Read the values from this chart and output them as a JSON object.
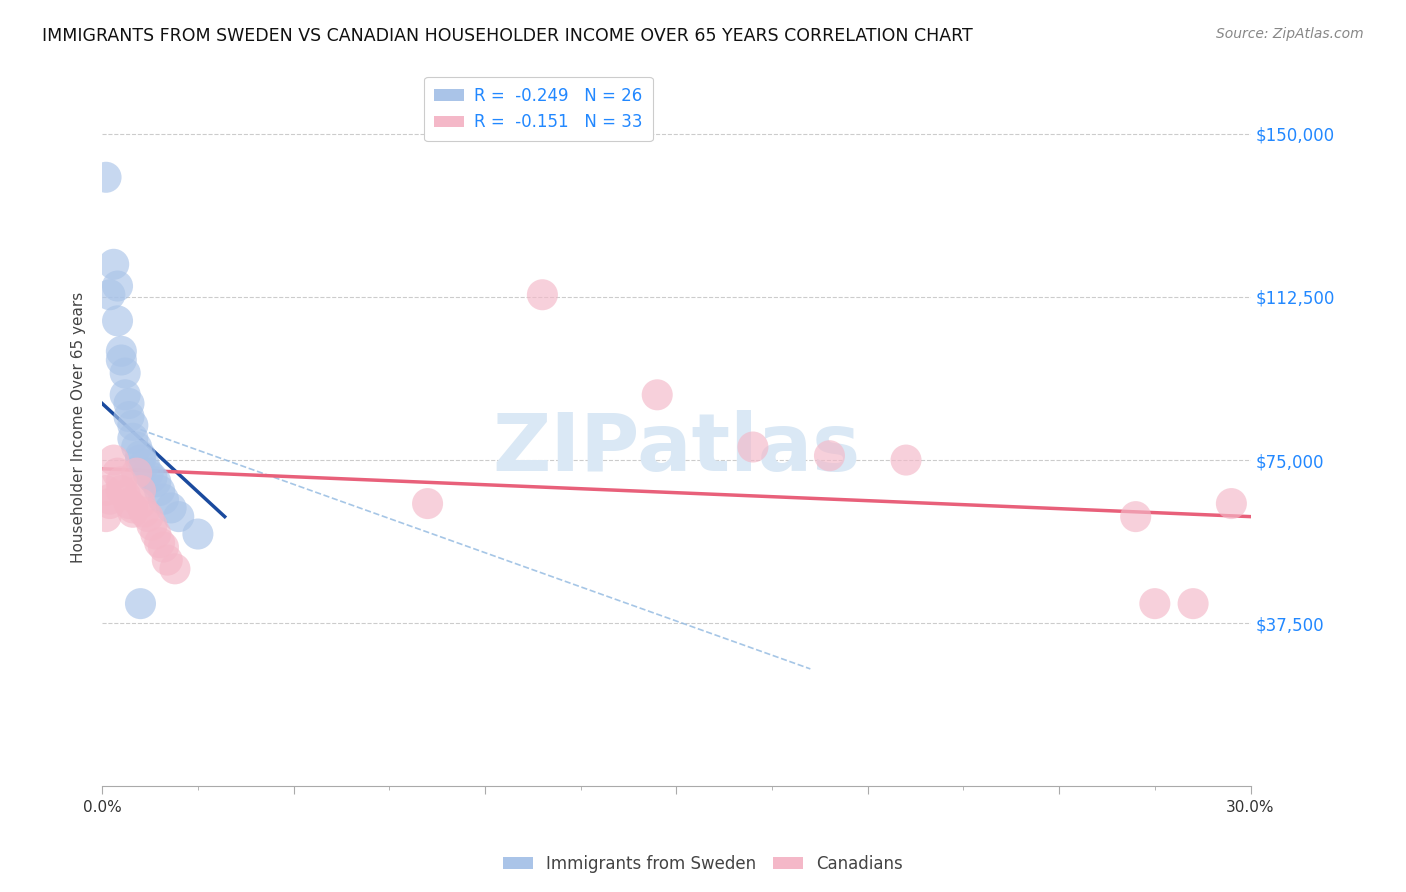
{
  "title": "IMMIGRANTS FROM SWEDEN VS CANADIAN HOUSEHOLDER INCOME OVER 65 YEARS CORRELATION CHART",
  "source": "Source: ZipAtlas.com",
  "ylabel": "Householder Income Over 65 years",
  "ytick_values": [
    37500,
    75000,
    112500,
    150000
  ],
  "xmin": 0.0,
  "xmax": 0.3,
  "ymin": 0,
  "ymax": 165000,
  "legend_top": [
    {
      "label": "R =  -0.249   N = 26",
      "color": "#aac4e8"
    },
    {
      "label": "R =  -0.151   N = 33",
      "color": "#f4b8c8"
    }
  ],
  "legend_bottom": [
    "Immigrants from Sweden",
    "Canadians"
  ],
  "watermark": "ZIPatlas",
  "sweden_color": "#aac4e8",
  "canada_color": "#f4b8c8",
  "sweden_line_color": "#1a4a9e",
  "canada_line_color": "#e8607a",
  "dashed_line_color": "#90b8e0",
  "sweden_points": [
    [
      0.001,
      140000
    ],
    [
      0.003,
      120000
    ],
    [
      0.004,
      115000
    ],
    [
      0.002,
      113000
    ],
    [
      0.004,
      107000
    ],
    [
      0.005,
      100000
    ],
    [
      0.005,
      98000
    ],
    [
      0.006,
      95000
    ],
    [
      0.006,
      90000
    ],
    [
      0.007,
      88000
    ],
    [
      0.007,
      85000
    ],
    [
      0.008,
      83000
    ],
    [
      0.008,
      80000
    ],
    [
      0.009,
      78000
    ],
    [
      0.01,
      76000
    ],
    [
      0.01,
      75000
    ],
    [
      0.011,
      74000
    ],
    [
      0.012,
      72000
    ],
    [
      0.013,
      71000
    ],
    [
      0.014,
      70000
    ],
    [
      0.015,
      68000
    ],
    [
      0.016,
      66000
    ],
    [
      0.018,
      64000
    ],
    [
      0.02,
      62000
    ],
    [
      0.025,
      58000
    ],
    [
      0.01,
      42000
    ]
  ],
  "canada_points": [
    [
      0.001,
      68000
    ],
    [
      0.002,
      66000
    ],
    [
      0.002,
      65000
    ],
    [
      0.003,
      75000
    ],
    [
      0.004,
      72000
    ],
    [
      0.005,
      70000
    ],
    [
      0.005,
      68000
    ],
    [
      0.006,
      67000
    ],
    [
      0.007,
      65000
    ],
    [
      0.008,
      64000
    ],
    [
      0.008,
      63000
    ],
    [
      0.009,
      72000
    ],
    [
      0.01,
      68000
    ],
    [
      0.01,
      65000
    ],
    [
      0.011,
      63000
    ],
    [
      0.012,
      62000
    ],
    [
      0.013,
      60000
    ],
    [
      0.014,
      58000
    ],
    [
      0.015,
      56000
    ],
    [
      0.016,
      55000
    ],
    [
      0.017,
      52000
    ],
    [
      0.019,
      50000
    ],
    [
      0.001,
      62000
    ],
    [
      0.115,
      113000
    ],
    [
      0.145,
      90000
    ],
    [
      0.17,
      78000
    ],
    [
      0.19,
      76000
    ],
    [
      0.21,
      75000
    ],
    [
      0.085,
      65000
    ],
    [
      0.27,
      62000
    ],
    [
      0.275,
      42000
    ],
    [
      0.285,
      42000
    ],
    [
      0.295,
      65000
    ]
  ],
  "sweden_line_x": [
    0.0,
    0.032
  ],
  "sweden_line_y": [
    88000,
    62000
  ],
  "canada_line_x": [
    0.0,
    0.3
  ],
  "canada_line_y": [
    73000,
    62000
  ],
  "dashed_line_x": [
    0.01,
    0.185
  ],
  "dashed_line_y": [
    82000,
    27000
  ]
}
